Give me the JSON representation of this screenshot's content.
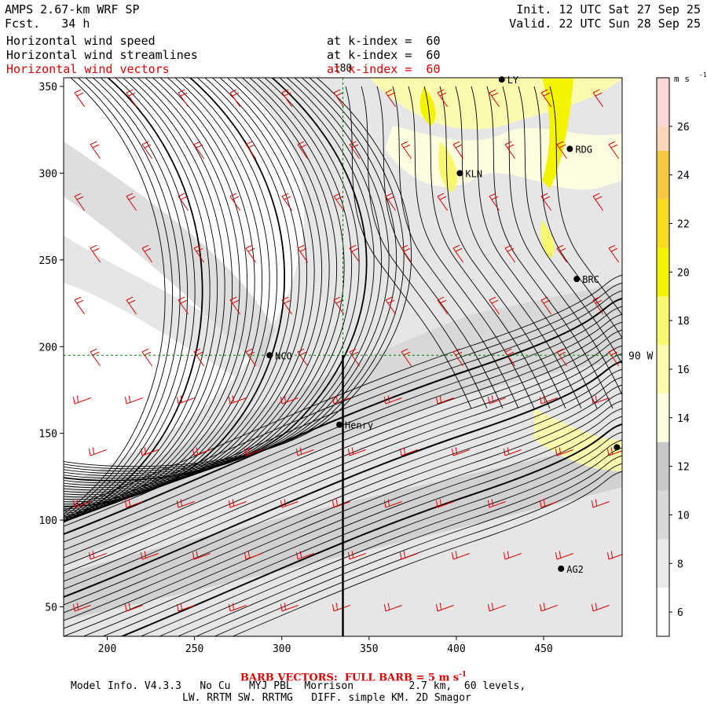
{
  "header": {
    "model_title": "AMPS 2.67-km WRF SP",
    "forecast": "Fcst.   34 h",
    "init": "Init. 12 UTC Sat 27 Sep 25",
    "valid": "Valid. 22 UTC Sun 28 Sep 25"
  },
  "fields": [
    {
      "name": "Horizontal wind speed",
      "level": "at k-index =  60",
      "color": "#000000"
    },
    {
      "name": "Horizontal wind streamlines",
      "level": "at k-index =  60",
      "color": "#000000"
    },
    {
      "name": "Horizontal wind vectors",
      "level": "at k-index =  60",
      "color": "#e00000"
    }
  ],
  "map": {
    "x_ticks": [
      "200",
      "250",
      "300",
      "350",
      "400",
      "450"
    ],
    "x_tick_values": [
      200,
      250,
      300,
      350,
      400,
      450
    ],
    "y_ticks": [
      "50",
      "100",
      "150",
      "200",
      "250",
      "300",
      "350"
    ],
    "y_tick_values": [
      50,
      100,
      150,
      200,
      250,
      300,
      350
    ],
    "x_range": [
      175,
      495
    ],
    "y_range": [
      33,
      355
    ],
    "meridian_label": "180",
    "parallel_label": "90 W",
    "meridian_x": 335,
    "parallel_y": 195,
    "stations": [
      {
        "id": "LY",
        "label": "LY",
        "x": 426,
        "y": 354
      },
      {
        "id": "RDG",
        "label": "RDG",
        "x": 465,
        "y": 314
      },
      {
        "id": "KLN",
        "label": "KLN",
        "x": 402,
        "y": 300
      },
      {
        "id": "BRC",
        "label": "BRC",
        "x": 469,
        "y": 239
      },
      {
        "id": "NCO",
        "label": "NCO",
        "x": 293,
        "y": 195
      },
      {
        "id": "Henry",
        "label": "Henry",
        "x": 333,
        "y": 155
      },
      {
        "id": "edge",
        "label": "",
        "x": 492,
        "y": 142
      },
      {
        "id": "AG2",
        "label": "AG2",
        "x": 460,
        "y": 72
      }
    ]
  },
  "colorbar": {
    "unit": "m s",
    "unit_exp": "-1",
    "labels": [
      "6",
      "8",
      "10",
      "12",
      "14",
      "16",
      "18",
      "20",
      "22",
      "24",
      "26"
    ],
    "label_values": [
      6,
      8,
      10,
      12,
      14,
      16,
      18,
      20,
      22,
      24,
      26
    ],
    "range": [
      5,
      28
    ],
    "bands": [
      {
        "from": 5,
        "to": 7,
        "color": "#ffffff"
      },
      {
        "from": 7,
        "to": 9,
        "color": "#e9e9e9"
      },
      {
        "from": 9,
        "to": 11,
        "color": "#d8d8d8"
      },
      {
        "from": 11,
        "to": 13,
        "color": "#c8c8c8"
      },
      {
        "from": 13,
        "to": 15,
        "color": "#fdfde0"
      },
      {
        "from": 15,
        "to": 17,
        "color": "#fbfbb0"
      },
      {
        "from": 17,
        "to": 19,
        "color": "#f8f870"
      },
      {
        "from": 19,
        "to": 21,
        "color": "#f4f400"
      },
      {
        "from": 21,
        "to": 23,
        "color": "#f6dd20"
      },
      {
        "from": 23,
        "to": 25,
        "color": "#f4c840"
      },
      {
        "from": 25,
        "to": 26,
        "color": "#f8d8b8"
      },
      {
        "from": 26,
        "to": 28,
        "color": "#fbd8d8"
      }
    ]
  },
  "footer": {
    "barb_note": "BARB VECTORS:  FULL BARB = 5 m s",
    "barb_exp": "-1",
    "model_info": "Model Info. V4.3.3   No Cu   MYJ PBL  Morrison         2.7 km,  60 levels,",
    "physics": "LW. RRTM SW. RRTMG   DIFF. simple KM. 2D Smagor"
  }
}
